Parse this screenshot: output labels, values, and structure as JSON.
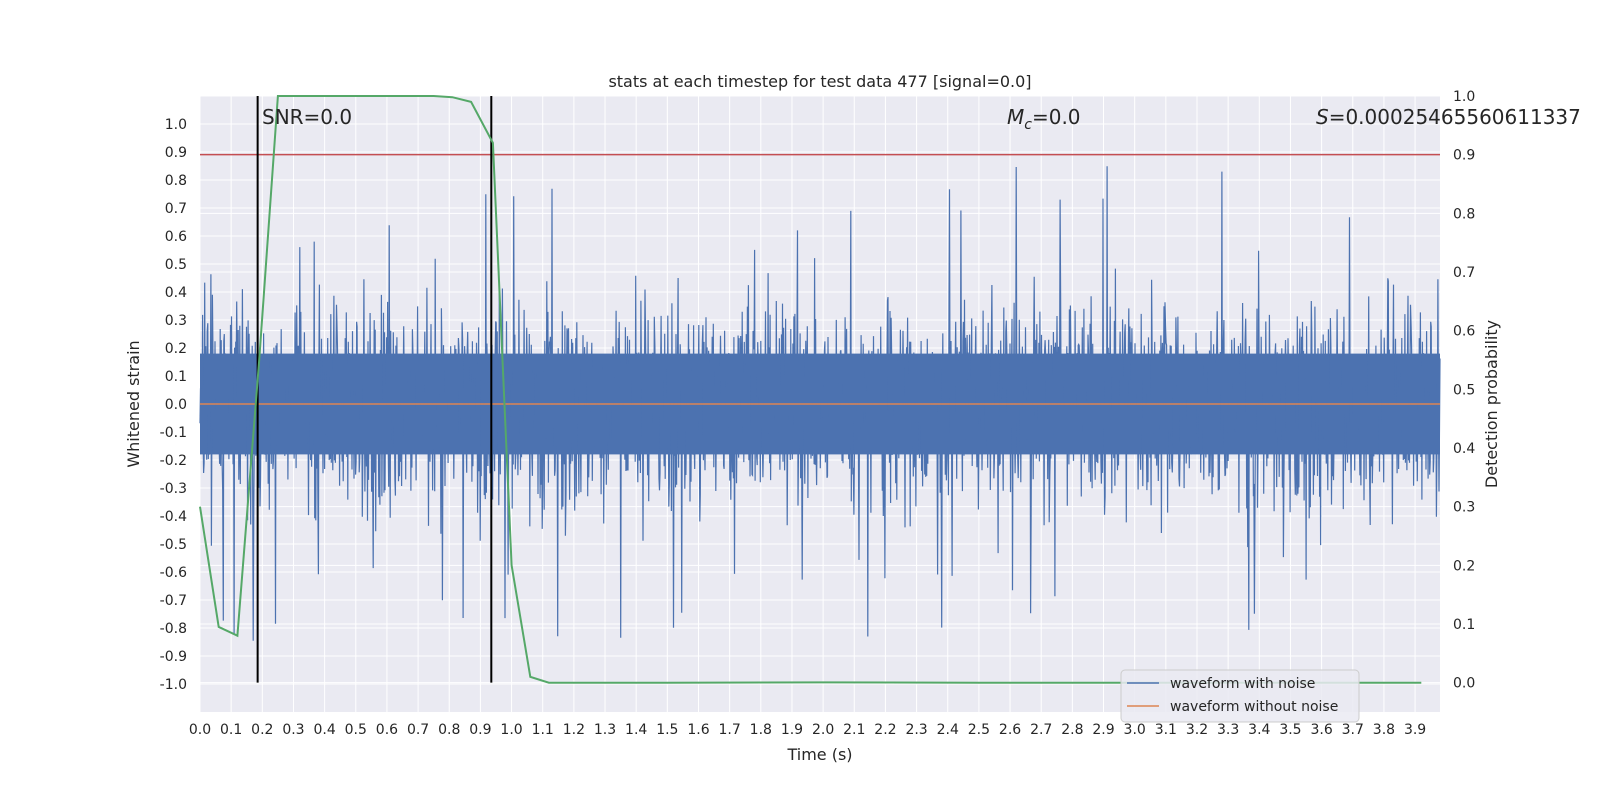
{
  "chart_data": {
    "type": "line",
    "title": "stats at each timestep for test data 477 [signal=0.0]",
    "xlabel": "Time (s)",
    "ylabel": "Whitened strain",
    "y2label": "Detection probability",
    "xlim": [
      0.0,
      3.98
    ],
    "ylim": [
      -1.1,
      1.1
    ],
    "y2lim": [
      -0.05,
      1.0
    ],
    "xticks": [
      "0.0",
      "0.1",
      "0.2",
      "0.3",
      "0.4",
      "0.5",
      "0.6",
      "0.7",
      "0.8",
      "0.9",
      "1.0",
      "1.1",
      "1.2",
      "1.3",
      "1.4",
      "1.5",
      "1.6",
      "1.7",
      "1.8",
      "1.9",
      "2.0",
      "2.1",
      "2.2",
      "2.3",
      "2.4",
      "2.5",
      "2.6",
      "2.7",
      "2.8",
      "2.9",
      "3.0",
      "3.1",
      "3.2",
      "3.3",
      "3.4",
      "3.5",
      "3.6",
      "3.7",
      "3.8",
      "3.9"
    ],
    "yticks": [
      "1.0",
      "0.9",
      "0.8",
      "0.7",
      "0.6",
      "0.5",
      "0.4",
      "0.3",
      "0.2",
      "0.1",
      "0.0",
      "-0.1",
      "-0.2",
      "-0.3",
      "-0.4",
      "-0.5",
      "-0.6",
      "-0.7",
      "-0.8",
      "-0.9",
      "-1.0"
    ],
    "y2ticks": [
      "1.0",
      "0.9",
      "0.8",
      "0.7",
      "0.6",
      "0.5",
      "0.4",
      "0.3",
      "0.2",
      "0.1",
      "0.0"
    ],
    "annotations": {
      "snr": "SNR=0.0",
      "mc_symbol": "M",
      "mc_sub": "c",
      "mc_value": "=0.0",
      "s_symbol": "S",
      "s_value": "=0.00025465560611337"
    },
    "threshold_line": {
      "y2": 0.9,
      "color": "#c44e52"
    },
    "vertical_markers": [
      0.185,
      0.935
    ],
    "series": [
      {
        "name": "waveform with noise",
        "color": "#4c72b0",
        "noise_amplitude": 0.42,
        "peak_max": 1.0,
        "peak_min": -0.98
      },
      {
        "name": "waveform without noise",
        "color": "#dd8452",
        "values": "zero"
      },
      {
        "name": "detection probability",
        "color": "#55a868",
        "axis": "y2",
        "x": [
          0.0,
          0.06,
          0.12,
          0.19,
          0.25,
          0.31,
          0.5,
          0.75,
          0.81,
          0.87,
          0.94,
          1.0,
          1.06,
          1.12,
          1.5,
          2.0,
          2.5,
          3.0,
          3.5,
          3.92
        ],
        "values": [
          0.3,
          0.095,
          0.08,
          0.55,
          1.0,
          1.0,
          1.0,
          1.0,
          0.998,
          0.99,
          0.92,
          0.2,
          0.01,
          0.0,
          0.0,
          0.0005,
          0.0,
          0.0,
          0.0,
          0.0
        ]
      }
    ],
    "legend": [
      "waveform with noise",
      "waveform without noise"
    ],
    "legend_position": "bottom-right"
  }
}
